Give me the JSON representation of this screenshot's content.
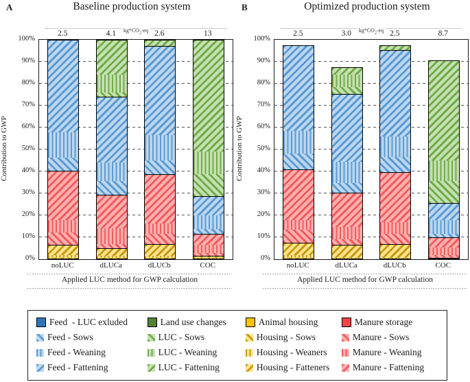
{
  "y_ticks": [
    "100%",
    "90%",
    "80%",
    "70%",
    "60%",
    "50%",
    "40%",
    "30%",
    "20%",
    "10%",
    "0%"
  ],
  "panels": [
    {
      "label": "A",
      "title": "Baseline production system",
      "unit_prefix": "kg*CO",
      "unit_sub": "2",
      "unit_suffix": "-eq",
      "ylabel": "Contribution to GWP",
      "xlabel": "Applied LUC method for GWP calculation"
    },
    {
      "label": "B",
      "title": "Optimized production system",
      "unit_prefix": "kg*CO",
      "unit_sub": "2",
      "unit_suffix": "-eq",
      "ylabel": "Contribution to GWP",
      "xlabel": "Applied LUC method for GWP calculation"
    }
  ],
  "chart_data": [
    {
      "type": "bar",
      "stacked": true,
      "title": "Baseline production system",
      "categories": [
        "noLUC",
        "dLUCa",
        "dLUCb",
        "COC"
      ],
      "total_labels": [
        "2.5",
        "4.1",
        "2.6",
        "13"
      ],
      "unit": "kg*CO2-eq",
      "xlabel": "Applied LUC method for GWP calculation",
      "ylabel": "Contribution to GWP",
      "ylim": [
        0,
        100
      ],
      "grid": "dashed horizontal every 10%",
      "series": [
        {
          "name": "Housing - Sows",
          "color": "yellow",
          "pattern": "dd",
          "values": [
            1.0,
            0.8,
            0.8,
            0.5
          ]
        },
        {
          "name": "Housing - Weaners",
          "color": "yellow",
          "pattern": "v",
          "values": [
            1.2,
            1.0,
            1.0,
            0.5
          ]
        },
        {
          "name": "Housing - Fatteners",
          "color": "yellow",
          "pattern": "du",
          "values": [
            4.8,
            3.5,
            5.5,
            1.0
          ]
        },
        {
          "name": "Manure - Sows",
          "color": "red",
          "pattern": "dd",
          "values": [
            5.5,
            2.0,
            4.7,
            1.1
          ]
        },
        {
          "name": "Manure - Weaning",
          "color": "red",
          "pattern": "v",
          "values": [
            5.5,
            7.0,
            4.7,
            3.7
          ]
        },
        {
          "name": "Manure - Fattening",
          "color": "red",
          "pattern": "du",
          "values": [
            22.5,
            15.5,
            22.4,
            5.2
          ]
        },
        {
          "name": "Feed - Sows",
          "color": "blue",
          "pattern": "dd",
          "values": [
            6.0,
            6.0,
            6.2,
            2.0
          ]
        },
        {
          "name": "Feed - Weaning",
          "color": "blue",
          "pattern": "v",
          "values": [
            11.5,
            8.5,
            11.5,
            6.3
          ]
        },
        {
          "name": "Feed - Fattening",
          "color": "blue",
          "pattern": "du",
          "values": [
            42.0,
            30.0,
            40.7,
            8.9
          ]
        },
        {
          "name": "LUC - Sows",
          "color": "green",
          "pattern": "dd",
          "values": [
            0,
            2.0,
            0,
            9.9
          ]
        },
        {
          "name": "LUC - Weaning",
          "color": "green",
          "pattern": "v",
          "values": [
            0,
            8.0,
            0,
            10.4
          ]
        },
        {
          "name": "LUC - Fattening",
          "color": "green",
          "pattern": "du",
          "values": [
            0,
            15.7,
            2.5,
            50.5
          ]
        }
      ]
    },
    {
      "type": "bar",
      "stacked": true,
      "title": "Optimized production system",
      "categories": [
        "noLUC",
        "dLUCa",
        "dLUCb",
        "COC"
      ],
      "total_labels": [
        "2.5",
        "3.0",
        "2.5",
        "8.7"
      ],
      "unit": "kg*CO2-eq",
      "xlabel": "Applied LUC method for GWP calculation",
      "ylabel": "Contribution to GWP",
      "ylim": [
        0,
        100
      ],
      "grid": "dashed horizontal every 10%",
      "series": [
        {
          "name": "Housing - Sows",
          "color": "yellow",
          "pattern": "dd",
          "values": [
            1.0,
            0.5,
            0.5,
            0.4
          ]
        },
        {
          "name": "Housing - Weaners",
          "color": "yellow",
          "pattern": "v",
          "values": [
            1.1,
            0.5,
            0.5,
            0.3
          ]
        },
        {
          "name": "Housing - Fatteners",
          "color": "yellow",
          "pattern": "du",
          "values": [
            5.7,
            5.8,
            6.3,
            0.3
          ]
        },
        {
          "name": "Manure - Sows",
          "color": "red",
          "pattern": "dd",
          "values": [
            5.8,
            2.6,
            4.7,
            1.1
          ]
        },
        {
          "name": "Manure - Weaning",
          "color": "red",
          "pattern": "v",
          "values": [
            4.6,
            5.7,
            5.2,
            3.6
          ]
        },
        {
          "name": "Manure - Fattening",
          "color": "red",
          "pattern": "du",
          "values": [
            22.9,
            15.6,
            22.9,
            4.7
          ]
        },
        {
          "name": "Feed - Sows",
          "color": "blue",
          "pattern": "dd",
          "values": [
            7.3,
            4.2,
            6.8,
            1.6
          ]
        },
        {
          "name": "Feed - Weaning",
          "color": "blue",
          "pattern": "v",
          "values": [
            10.5,
            9.9,
            9.4,
            6.2
          ]
        },
        {
          "name": "Feed - Fattening",
          "color": "blue",
          "pattern": "du",
          "values": [
            38.6,
            30.7,
            39.2,
            7.8
          ]
        },
        {
          "name": "LUC - Sows",
          "color": "green",
          "pattern": "dd",
          "values": [
            0,
            3.1,
            0,
            9.9
          ]
        },
        {
          "name": "LUC - Weaning",
          "color": "green",
          "pattern": "v",
          "values": [
            0,
            5.8,
            0,
            9.4
          ]
        },
        {
          "name": "LUC - Fattening",
          "color": "green",
          "pattern": "du",
          "values": [
            0,
            3.1,
            2.0,
            45.2
          ]
        }
      ]
    }
  ],
  "legend": {
    "rows": [
      [
        {
          "label": "Feed  - LUC exluded",
          "color": "blue",
          "pattern": "solid"
        },
        {
          "label": "Land use changes",
          "color": "green",
          "pattern": "solid"
        },
        {
          "label": "Animal housing",
          "color": "yellow",
          "pattern": "solid"
        },
        {
          "label": "Manure storage",
          "color": "red",
          "pattern": "solid"
        }
      ],
      [
        {
          "label": "Feed - Sows",
          "color": "blue",
          "pattern": "dd"
        },
        {
          "label": "LUC - Sows",
          "color": "green",
          "pattern": "dd"
        },
        {
          "label": "Housing - Sows",
          "color": "yellow",
          "pattern": "dd"
        },
        {
          "label": "Manure - Sows",
          "color": "red",
          "pattern": "dd"
        }
      ],
      [
        {
          "label": "Feed - Weaning",
          "color": "blue",
          "pattern": "v"
        },
        {
          "label": "LUC - Weaning",
          "color": "green",
          "pattern": "v"
        },
        {
          "label": "Housing - Weaners",
          "color": "yellow",
          "pattern": "v"
        },
        {
          "label": "Manure - Weaning",
          "color": "red",
          "pattern": "v"
        }
      ],
      [
        {
          "label": "Feed - Fattening",
          "color": "blue",
          "pattern": "du"
        },
        {
          "label": "LUC - Fattening",
          "color": "green",
          "pattern": "du"
        },
        {
          "label": "Housing - Fatteners",
          "color": "yellow",
          "pattern": "du"
        },
        {
          "label": "Manure - Fattening",
          "color": "red",
          "pattern": "du"
        }
      ]
    ]
  },
  "colors": {
    "blue_solid": "#2e75b6",
    "blue_stripe": "#5b9bd5",
    "blue_bg": "#bdd7ee",
    "green_solid": "#538135",
    "green_stripe": "#71ad47",
    "green_bg": "#c6e0b4",
    "yellow_solid": "#ffc000",
    "yellow_stripe": "#c99a11",
    "yellow_bg": "#ffe48f",
    "red_solid": "#f04545",
    "red_stripe": "#f15d5d",
    "red_bg": "#fcb0b0",
    "bar_border": "#000000"
  }
}
